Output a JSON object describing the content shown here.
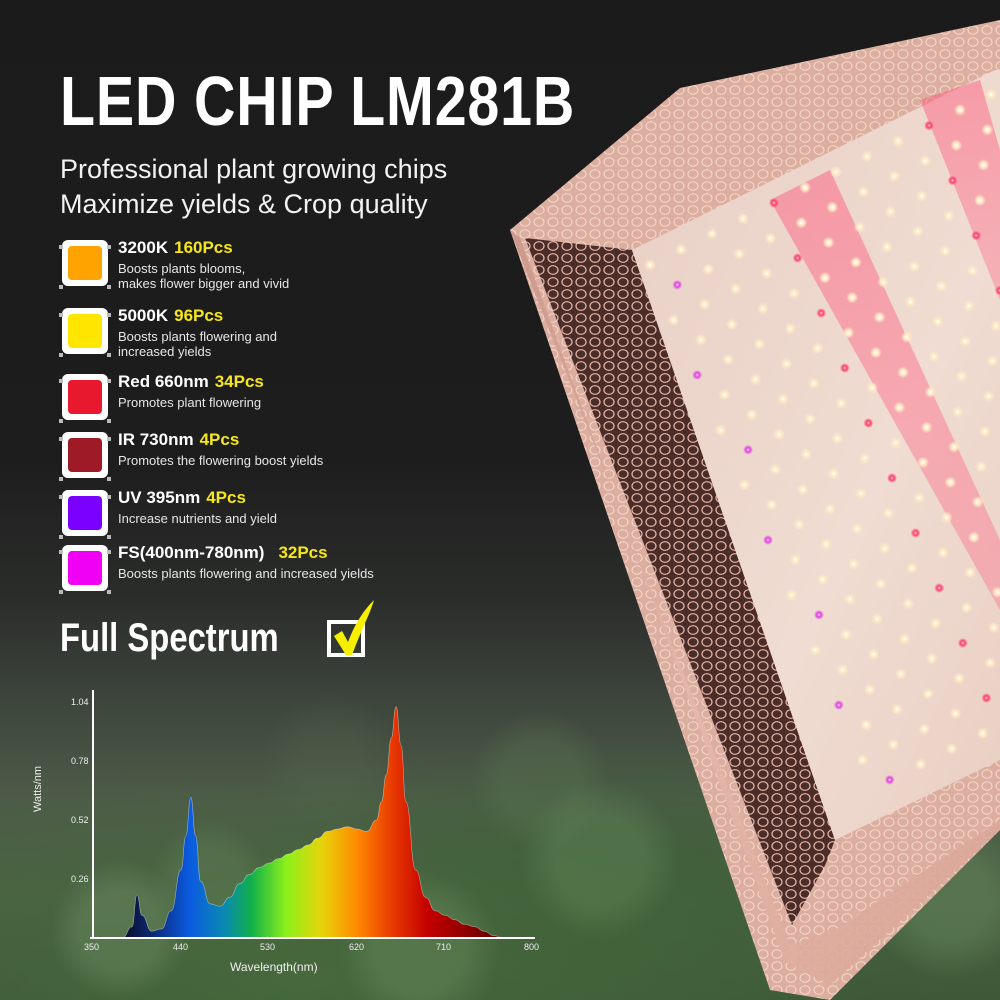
{
  "header": {
    "title": "LED CHIP LM281B",
    "subtitle_lines": [
      "Professional plant growing chips",
      "Maximize yields & Crop quality"
    ]
  },
  "chips": [
    {
      "name": "3200K",
      "count": "160Pcs",
      "desc": [
        "Boosts plants blooms,",
        "makes flower bigger and vivid"
      ],
      "color": "#ffa300"
    },
    {
      "name": "5000K",
      "count": "96Pcs",
      "desc": [
        "Boosts plants flowering and",
        "increased yields"
      ],
      "color": "#ffe600"
    },
    {
      "name": "Red 660nm",
      "count": "34Pcs",
      "desc": [
        "Promotes plant flowering"
      ],
      "color": "#e8182f"
    },
    {
      "name": "IR 730nm",
      "count": "4Pcs",
      "desc": [
        "Promotes the flowering boost yields"
      ],
      "color": "#9e1a26"
    },
    {
      "name": "UV 395nm",
      "count": "4Pcs",
      "desc": [
        "Increase nutrients and yield"
      ],
      "color": "#7a00ff"
    },
    {
      "name": "FS(400nm-780nm)",
      "count": "32Pcs",
      "desc": [
        "Boosts plants flowering and increased yields"
      ],
      "color": "#f000f5"
    }
  ],
  "full_spectrum": {
    "label": "Full Spectrum",
    "checked": true,
    "check_color": "#f6f000"
  },
  "chart_data": {
    "type": "area",
    "title": "",
    "xlabel": "Wavelength(nm)",
    "ylabel": "Watts/nm",
    "x_ticks": [
      350,
      440,
      530,
      620,
      710,
      800
    ],
    "y_ticks": [
      0.26,
      0.52,
      0.78,
      1.04
    ],
    "xlim": [
      350,
      800
    ],
    "ylim": [
      0,
      1.1
    ],
    "grid": false,
    "legend": null,
    "x": [
      380,
      390,
      395,
      400,
      410,
      420,
      430,
      440,
      445,
      450,
      455,
      460,
      470,
      480,
      490,
      500,
      510,
      520,
      530,
      540,
      550,
      560,
      570,
      580,
      590,
      600,
      610,
      620,
      630,
      640,
      645,
      650,
      655,
      660,
      665,
      670,
      680,
      690,
      700,
      710,
      720,
      730,
      740,
      750,
      760,
      770
    ],
    "values": [
      0.0,
      0.05,
      0.19,
      0.1,
      0.03,
      0.04,
      0.12,
      0.3,
      0.45,
      0.62,
      0.45,
      0.25,
      0.15,
      0.14,
      0.18,
      0.24,
      0.28,
      0.31,
      0.33,
      0.35,
      0.37,
      0.39,
      0.41,
      0.44,
      0.47,
      0.48,
      0.49,
      0.48,
      0.47,
      0.52,
      0.6,
      0.72,
      0.88,
      1.02,
      0.85,
      0.6,
      0.3,
      0.18,
      0.12,
      0.1,
      0.08,
      0.06,
      0.05,
      0.03,
      0.01,
      0.0
    ]
  }
}
